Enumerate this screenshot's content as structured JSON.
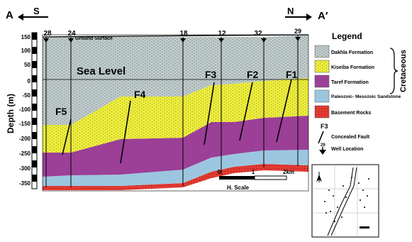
{
  "section": {
    "end_left": "A",
    "end_right": "A′",
    "dir_left": "S",
    "dir_right": "N",
    "ground_surface": "Ground Surface",
    "sea_level": "Sea Level",
    "depth_axis_label": "Depth (m)",
    "depth_ticks": [
      "150",
      "100",
      "50",
      "0",
      "-50",
      "-100",
      "-150",
      "-200",
      "-250",
      "-300",
      "-350"
    ],
    "wells": [
      "28",
      "24",
      "18",
      "12",
      "32",
      "29"
    ],
    "faults": [
      "F5",
      "F4",
      "F3",
      "F2",
      "F1"
    ]
  },
  "legend": {
    "title": "Legend",
    "items": [
      {
        "label": "Dakhla Formation",
        "color": "#bfc9c9"
      },
      {
        "label": "Kiseiba Formation",
        "color": "#ecec3c"
      },
      {
        "label": "Taref Formation",
        "color": "#9b3f97"
      },
      {
        "label": "Paleozoic- Mesozoic Sandstone",
        "color": "#9cc6df"
      },
      {
        "label": "Basement Rocks",
        "color": "#e23a32"
      }
    ],
    "group_label": "Cretaceous",
    "fault_symbol_label": "F3",
    "fault_label": "Concealed Fault",
    "well_symbol_label": "29",
    "well_label": "Well Location"
  },
  "scale": {
    "ticks": [
      "0",
      "1",
      "2km"
    ],
    "caption": "H. Scale"
  }
}
